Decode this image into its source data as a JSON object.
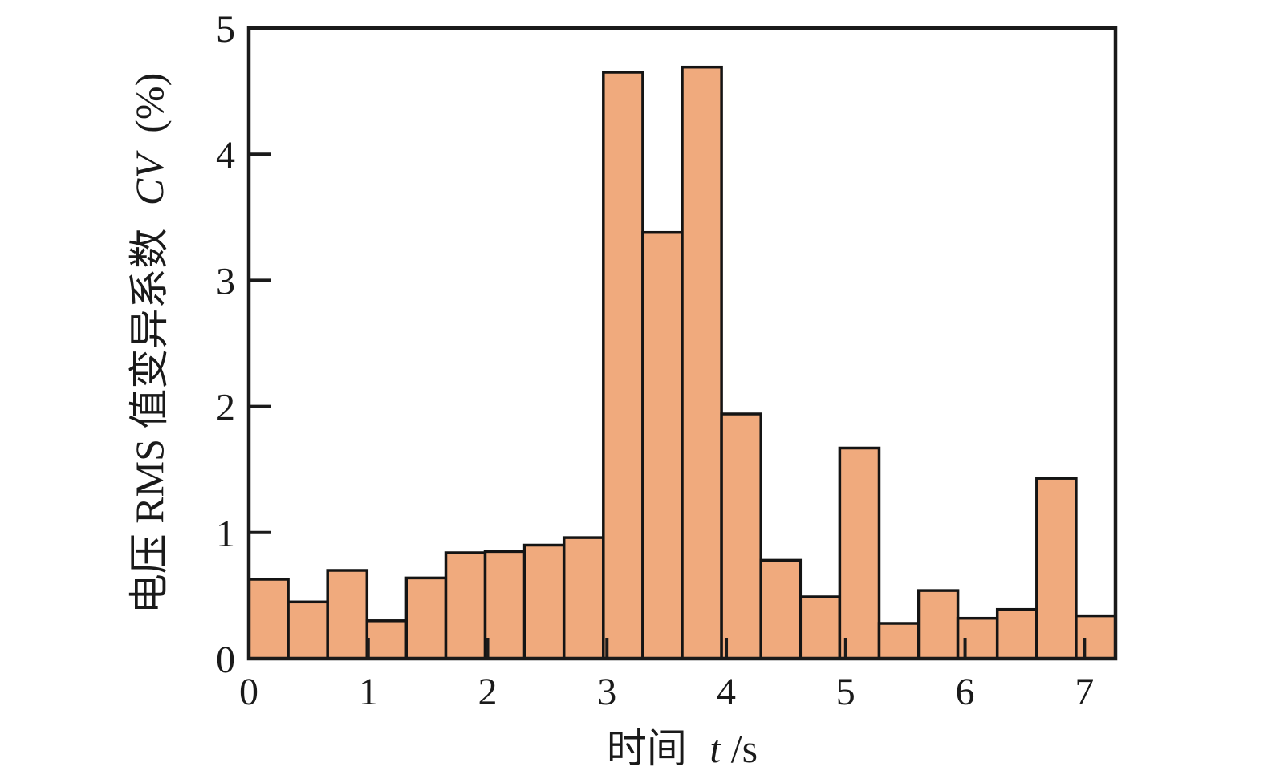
{
  "chart_data": {
    "type": "bar",
    "title": "",
    "xlabel_cn": "时间",
    "xlabel_var": "t",
    "xlabel_unit": "/s",
    "ylabel_cn": "电压 RMS 值变异系数",
    "ylabel_var": "CV",
    "ylabel_unit": "(%)",
    "x_range": [
      0,
      7.26
    ],
    "y_range": [
      0,
      5
    ],
    "x_ticks": [
      0,
      1,
      2,
      3,
      4,
      5,
      6,
      7
    ],
    "y_ticks": [
      0,
      1,
      2,
      3,
      4,
      5
    ],
    "bin_width": 0.33,
    "values": [
      0.63,
      0.45,
      0.7,
      0.3,
      0.64,
      0.84,
      0.85,
      0.9,
      0.96,
      4.65,
      3.38,
      4.69,
      1.94,
      0.78,
      0.49,
      1.67,
      0.28,
      0.54,
      0.32,
      0.39,
      1.43,
      0.34
    ],
    "bar_color": "#F0AA7D",
    "bar_edge_color": "#141414",
    "axis_color": "#1A1A1A",
    "grid": false,
    "legend": "none"
  }
}
